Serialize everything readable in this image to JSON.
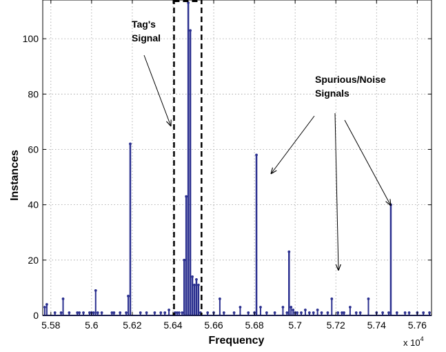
{
  "chart_data": {
    "type": "bar",
    "style": "stem",
    "xlabel": "Frequency",
    "ylabel": "Instances",
    "x_multiplier_base": "x 10",
    "x_multiplier_exp": "4",
    "xlim": [
      5.576,
      5.767
    ],
    "ylim": [
      0,
      114
    ],
    "grid": true,
    "x_ticks": [
      5.58,
      5.6,
      5.62,
      5.64,
      5.66,
      5.68,
      5.7,
      5.72,
      5.74,
      5.76
    ],
    "x_tick_labels": [
      "5.58",
      "5.6",
      "5.62",
      "5.64",
      "5.66",
      "5.68",
      "5.7",
      "5.72",
      "5.74",
      "5.76"
    ],
    "y_ticks": [
      0,
      20,
      40,
      60,
      80,
      100
    ],
    "y_tick_labels": [
      "0",
      "20",
      "40",
      "60",
      "80",
      "100"
    ],
    "stem_color": "#2a2f8f",
    "x": [
      5.577,
      5.578,
      5.582,
      5.585,
      5.586,
      5.589,
      5.593,
      5.594,
      5.596,
      5.599,
      5.6,
      5.601,
      5.602,
      5.603,
      5.605,
      5.61,
      5.611,
      5.614,
      5.617,
      5.618,
      5.619,
      5.624,
      5.627,
      5.631,
      5.634,
      5.636,
      5.638,
      5.641,
      5.642,
      5.643,
      5.6445,
      5.6455,
      5.6465,
      5.6475,
      5.6485,
      5.6495,
      5.6505,
      5.6515,
      5.6525,
      5.6535,
      5.657,
      5.66,
      5.663,
      5.665,
      5.67,
      5.673,
      5.677,
      5.68,
      5.681,
      5.683,
      5.686,
      5.69,
      5.694,
      5.696,
      5.697,
      5.698,
      5.699,
      5.7,
      5.701,
      5.703,
      5.705,
      5.707,
      5.709,
      5.711,
      5.713,
      5.716,
      5.718,
      5.721,
      5.723,
      5.724,
      5.727,
      5.73,
      5.732,
      5.736,
      5.74,
      5.743,
      5.746,
      5.747,
      5.75,
      5.754,
      5.756,
      5.76,
      5.763,
      5.766
    ],
    "values": [
      3,
      4,
      1,
      1,
      6,
      1,
      1,
      1,
      1,
      1,
      1,
      1,
      9,
      1,
      1,
      1,
      1,
      1,
      1,
      7,
      62,
      1,
      1,
      1,
      1,
      1,
      2,
      1,
      1,
      1,
      1,
      20,
      43,
      113,
      103,
      14,
      11,
      13,
      11,
      1,
      1,
      1,
      6,
      1,
      1,
      3,
      1,
      1,
      58,
      3,
      1,
      1,
      3,
      1,
      23,
      3,
      2,
      1,
      1,
      1,
      2,
      1,
      1,
      2,
      1,
      1,
      6,
      1,
      1,
      1,
      3,
      1,
      1,
      6,
      1,
      1,
      1,
      40,
      1,
      1,
      1,
      1,
      1,
      1
    ],
    "dashed_box": {
      "x1": 5.6405,
      "x2": 5.654
    },
    "annotations": [
      {
        "lines": [
          "Tag's",
          "Signal"
        ]
      },
      {
        "lines": [
          "Spurious/Noise",
          "Signals"
        ]
      }
    ]
  }
}
